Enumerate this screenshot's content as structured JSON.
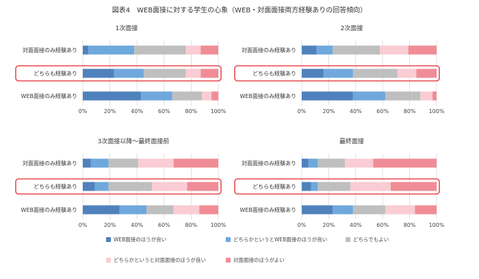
{
  "figure": {
    "title": "図表4　WEB面接に対する学生の心象（WEB・対面面接両方経験ありの回答傾向）"
  },
  "legend": [
    {
      "name": "WEB面接のほうが良い",
      "color": "#4f81bd"
    },
    {
      "name": "どちらかというとWEB面接のほうが良い",
      "color": "#6fa8dc"
    },
    {
      "name": "どちらでもよい",
      "color": "#bfbfbf"
    },
    {
      "name": "どちらかというと対面面接のほうが良い",
      "color": "#f9cdd3"
    },
    {
      "name": "対面面接のほうがよい",
      "color": "#f08c96"
    }
  ],
  "highlight_color": "#e8494f",
  "chart_data": [
    {
      "type": "bar",
      "orientation": "horizontal",
      "stacked": true,
      "title": "1次面接",
      "categories": [
        "対面面接のみ経験あり",
        "どちらも経験あり",
        "WEB面接のみ経験あり"
      ],
      "highlight_category": "どちらも経験あり",
      "xlim": [
        0,
        100
      ],
      "xticks": [
        "0%",
        "20%",
        "40%",
        "60%",
        "80%",
        "100%"
      ],
      "series": [
        {
          "name": "WEB面接のほうが良い",
          "values": [
            4,
            23,
            43
          ]
        },
        {
          "name": "どちらかというとWEB面接のほうが良い",
          "values": [
            34,
            22,
            23
          ]
        },
        {
          "name": "どちらでもよい",
          "values": [
            38,
            31,
            22
          ]
        },
        {
          "name": "どちらかというと対面面接のほうが良い",
          "values": [
            11,
            11,
            7
          ]
        },
        {
          "name": "対面面接のほうがよい",
          "values": [
            13,
            13,
            5
          ]
        }
      ]
    },
    {
      "type": "bar",
      "orientation": "horizontal",
      "stacked": true,
      "title": "2次面接",
      "categories": [
        "対面面接のみ経験あり",
        "どちらも経験あり",
        "WEB面接のみ経験あり"
      ],
      "highlight_category": "どちらも経験あり",
      "xlim": [
        0,
        100
      ],
      "xticks": [
        "0%",
        "20%",
        "40%",
        "60%",
        "80%",
        "100%"
      ],
      "series": [
        {
          "name": "WEB面接のほうが良い",
          "values": [
            11,
            16,
            38
          ]
        },
        {
          "name": "どちらかというとWEB面接のほうが良い",
          "values": [
            12,
            22,
            24
          ]
        },
        {
          "name": "どちらでもよい",
          "values": [
            35,
            33,
            26
          ]
        },
        {
          "name": "どちらかというと対面面接のほうが良い",
          "values": [
            21,
            14,
            9
          ]
        },
        {
          "name": "対面面接のほうがよい",
          "values": [
            21,
            15,
            3
          ]
        }
      ]
    },
    {
      "type": "bar",
      "orientation": "horizontal",
      "stacked": true,
      "title": "3次面接以降～最終面接前",
      "categories": [
        "対面面接のみ経験あり",
        "どちらも経験あり",
        "WEB面接のみ経験あり"
      ],
      "highlight_category": "どちらも経験あり",
      "xlim": [
        0,
        100
      ],
      "xticks": [
        "0%",
        "20%",
        "40%",
        "60%",
        "80%",
        "100%"
      ],
      "series": [
        {
          "name": "WEB面接のほうが良い",
          "values": [
            6,
            9,
            27
          ]
        },
        {
          "name": "どちらかというとWEB面接のほうが良い",
          "values": [
            13,
            10,
            20
          ]
        },
        {
          "name": "どちらでもよい",
          "values": [
            22,
            32,
            20
          ]
        },
        {
          "name": "どちらかというと対面面接のほうが良い",
          "values": [
            26,
            26,
            19
          ]
        },
        {
          "name": "対面面接のほうがよい",
          "values": [
            33,
            23,
            14
          ]
        }
      ]
    },
    {
      "type": "bar",
      "orientation": "horizontal",
      "stacked": true,
      "title": "最終面接",
      "categories": [
        "対面面接のみ経験あり",
        "どちらも経験あり",
        "WEB面接のみ経験あり"
      ],
      "highlight_category": "どちらも経験あり",
      "xlim": [
        0,
        100
      ],
      "xticks": [
        "0%",
        "20%",
        "40%",
        "60%",
        "80%",
        "100%"
      ],
      "series": [
        {
          "name": "WEB面接のほうが良い",
          "values": [
            5,
            7,
            23
          ]
        },
        {
          "name": "どちらかというとWEB面接のほうが良い",
          "values": [
            7,
            5,
            15
          ]
        },
        {
          "name": "どちらでもよい",
          "values": [
            20,
            24,
            24
          ]
        },
        {
          "name": "どちらかというと対面面接のほうが良い",
          "values": [
            21,
            30,
            22
          ]
        },
        {
          "name": "対面面接のほうがよい",
          "values": [
            47,
            34,
            16
          ]
        }
      ]
    }
  ]
}
